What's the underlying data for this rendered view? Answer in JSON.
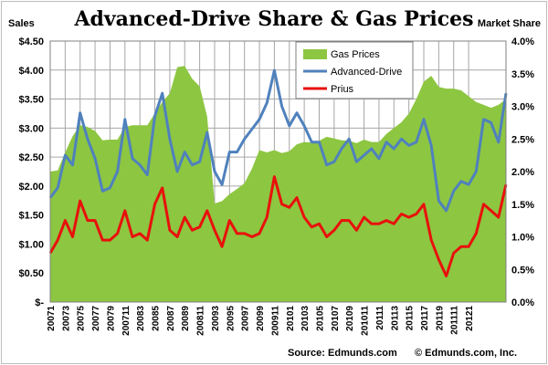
{
  "colors": {
    "gas_fill": "#8dc641",
    "advanced_drive": "#4f81bd",
    "prius": "#e8110c",
    "grid": "#a6a6a6"
  },
  "chart_data": {
    "type": "area+line",
    "title": "Advanced-Drive Share & Gas Prices",
    "left_axis_label": "Sales",
    "right_axis_label": "Market Share",
    "left_ylim": [
      0,
      4.5
    ],
    "right_ylim": [
      0,
      4.0
    ],
    "left_ticks": [
      "$4.50",
      "$4.00",
      "$3.50",
      "$3.00",
      "$2.50",
      "$2.00",
      "$1.50",
      "$1.00",
      "$0.50",
      "$-"
    ],
    "right_ticks": [
      "4.0%",
      "3.5%",
      "3.0%",
      "2.5%",
      "2.0%",
      "1.5%",
      "1.0%",
      "0.5%",
      "0.0%"
    ],
    "x_tick_labels": [
      "20071",
      "20073",
      "20075",
      "20077",
      "20079",
      "200711",
      "20083",
      "20085",
      "20087",
      "20089",
      "200811",
      "20093",
      "20095",
      "20097",
      "20099",
      "200911",
      "20101",
      "20103",
      "20105",
      "20107",
      "20109",
      "201011",
      "20111",
      "20113",
      "20115",
      "20117",
      "20119",
      "201111",
      "20121"
    ],
    "grid": true,
    "legend_position": "top-center",
    "series": [
      {
        "name": "Gas Prices",
        "kind": "area",
        "axis": "left",
        "values": [
          2.25,
          2.27,
          2.58,
          2.86,
          3.05,
          3.02,
          2.95,
          2.79,
          2.8,
          2.8,
          3.02,
          3.05,
          3.05,
          3.05,
          3.25,
          3.45,
          3.6,
          4.05,
          4.07,
          3.85,
          3.72,
          3.2,
          1.7,
          1.74,
          1.86,
          1.95,
          2.05,
          2.3,
          2.62,
          2.58,
          2.62,
          2.57,
          2.6,
          2.72,
          2.76,
          2.75,
          2.78,
          2.85,
          2.82,
          2.79,
          2.78,
          2.74,
          2.8,
          2.76,
          2.76,
          2.9,
          3.0,
          3.1,
          3.25,
          3.5,
          3.8,
          3.9,
          3.71,
          3.68,
          3.68,
          3.65,
          3.55,
          3.45,
          3.4,
          3.35,
          3.4,
          3.5
        ]
      },
      {
        "name": "Advanced-Drive",
        "kind": "line",
        "axis": "right",
        "values": [
          1.6,
          1.75,
          2.25,
          2.1,
          2.9,
          2.5,
          2.2,
          1.7,
          1.75,
          2.0,
          2.8,
          2.2,
          2.1,
          1.95,
          2.85,
          3.2,
          2.5,
          2.0,
          2.3,
          2.1,
          2.15,
          2.6,
          2.0,
          1.8,
          2.3,
          2.3,
          2.5,
          2.65,
          2.8,
          3.05,
          3.55,
          3.0,
          2.7,
          2.9,
          2.7,
          2.45,
          2.45,
          2.1,
          2.15,
          2.35,
          2.5,
          2.15,
          2.25,
          2.35,
          2.2,
          2.45,
          2.35,
          2.5,
          2.4,
          2.45,
          2.8,
          2.4,
          1.55,
          1.4,
          1.7,
          1.85,
          1.8,
          2.0,
          2.8,
          2.75,
          2.45,
          3.2
        ]
      },
      {
        "name": "Prius",
        "kind": "line",
        "axis": "right",
        "values": [
          0.75,
          0.95,
          1.25,
          1.0,
          1.55,
          1.25,
          1.25,
          0.95,
          0.95,
          1.05,
          1.4,
          1.0,
          1.05,
          0.95,
          1.5,
          1.75,
          1.1,
          1.0,
          1.3,
          1.1,
          1.15,
          1.4,
          1.1,
          0.85,
          1.25,
          1.05,
          1.05,
          1.0,
          1.05,
          1.3,
          1.92,
          1.5,
          1.45,
          1.6,
          1.3,
          1.15,
          1.2,
          1.0,
          1.1,
          1.25,
          1.25,
          1.1,
          1.3,
          1.2,
          1.2,
          1.25,
          1.2,
          1.35,
          1.3,
          1.35,
          1.5,
          0.95,
          0.65,
          0.4,
          0.75,
          0.85,
          0.85,
          1.05,
          1.5,
          1.4,
          1.3,
          1.8
        ]
      }
    ]
  },
  "legend": {
    "items": [
      {
        "label": "Gas Prices"
      },
      {
        "label": "Advanced-Drive"
      },
      {
        "label": "Prius"
      }
    ]
  },
  "footer": {
    "source": "Source: Edmunds.com",
    "copyright": "© Edmunds.com, Inc."
  }
}
